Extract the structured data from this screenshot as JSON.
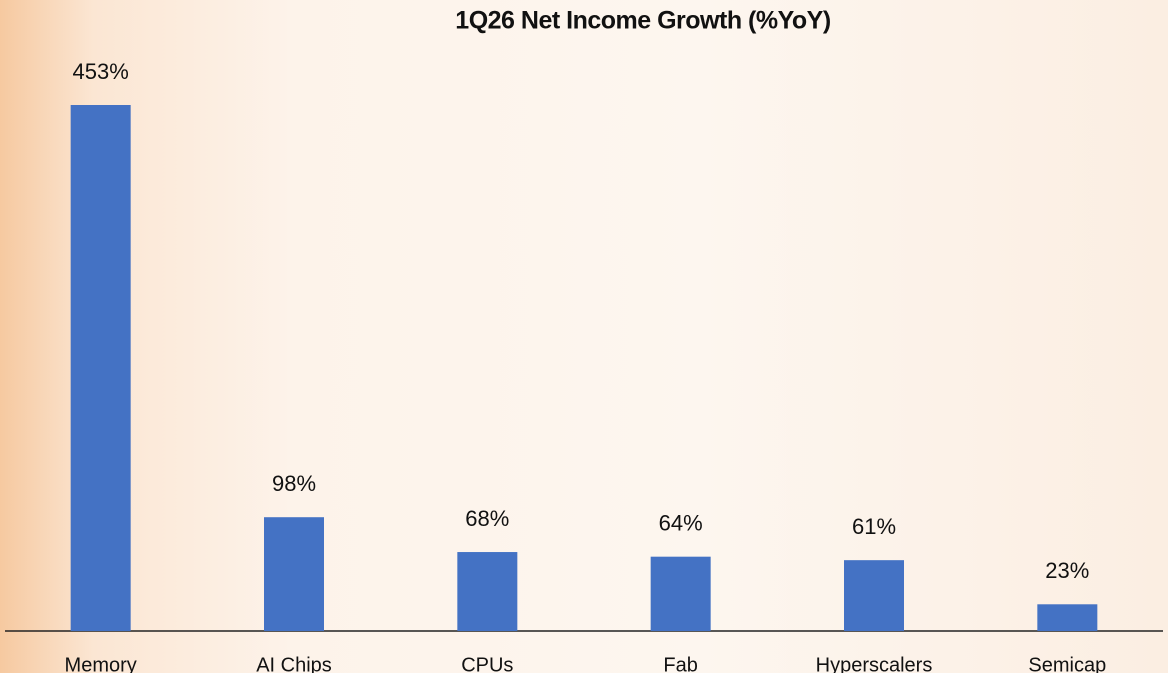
{
  "chart_data": {
    "type": "bar",
    "title": "1Q26 Net Income Growth (%YoY)",
    "categories": [
      "Memory",
      "AI Chips",
      "CPUs",
      "Fab",
      "Hyperscalers",
      "Semicap"
    ],
    "values": [
      453,
      98,
      68,
      64,
      61,
      23
    ],
    "value_labels": [
      "453%",
      "98%",
      "68%",
      "64%",
      "61%",
      "23%"
    ],
    "color": "#4472c4"
  }
}
